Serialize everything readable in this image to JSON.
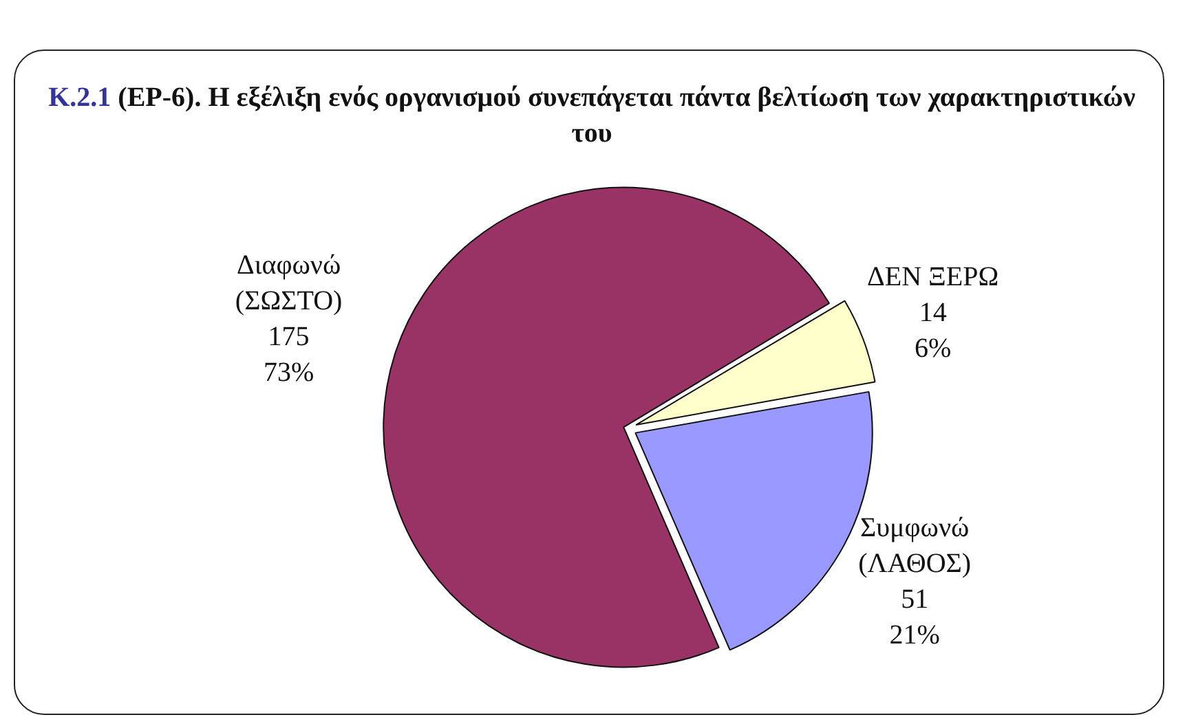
{
  "chart_data": {
    "type": "pie",
    "title": "Κ.2.1 (ΕΡ-6). Η εξέλιξη ενός οργανισμού συνεπάγεται πάντα βελτίωση των χαρακτηριστικών του",
    "categories": [
      "ΔΕΝ ΞΕΡΩ",
      "Συμφωνώ\n(ΛΑΘΟΣ)",
      "Διαφωνώ\n(ΣΩΣΤΟ)"
    ],
    "values": [
      14,
      51,
      175
    ],
    "colors": [
      "#ffffcc",
      "#9999ff",
      "#993366"
    ],
    "value_labels": [
      "14\n6%",
      "51\n21%",
      "175\n73%"
    ],
    "legend": false
  }
}
